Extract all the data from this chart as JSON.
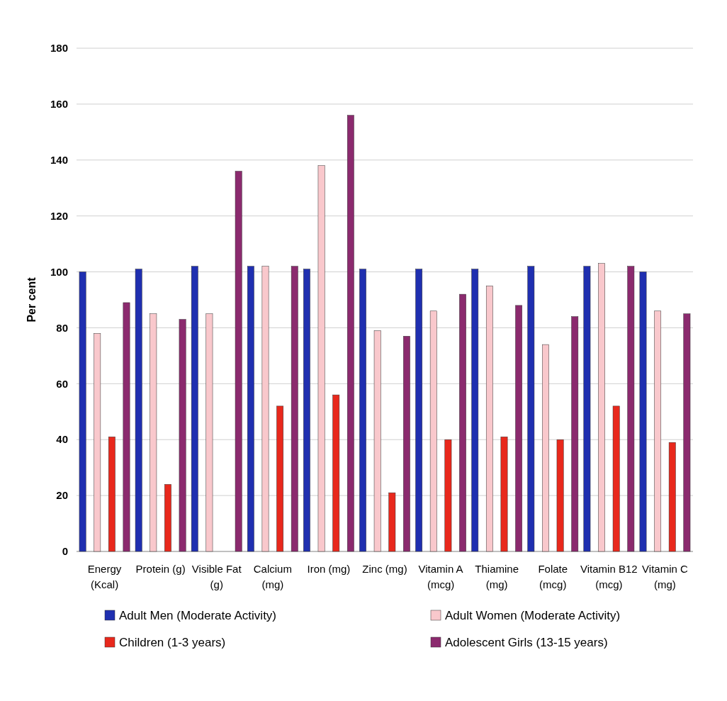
{
  "chart_data": {
    "type": "bar",
    "ylabel": "Per cent",
    "categories": [
      "Energy (Kcal)",
      "Protein (g)",
      "Visible Fat (g)",
      "Calcium (mg)",
      "Iron (mg)",
      "Zinc (mg)",
      "Vitamin A (mcg)",
      "Thiamine (mg)",
      "Folate (mcg)",
      "Vitamin B12 (mcg)",
      "Vitamin C (mg)"
    ],
    "series": [
      {
        "name": "Adult Men (Moderate Activity)",
        "color": "#1f2fb0",
        "values": [
          100,
          101,
          102,
          102,
          101,
          101,
          101,
          101,
          102,
          102,
          100
        ]
      },
      {
        "name": "Adult Women (Moderate Activity)",
        "color": "#f9c8cc",
        "values": [
          78,
          85,
          85,
          102,
          138,
          79,
          86,
          95,
          74,
          103,
          86
        ]
      },
      {
        "name": "Children (1-3 years)",
        "color": "#e8281c",
        "values": [
          41,
          24,
          null,
          52,
          56,
          21,
          40,
          41,
          40,
          52,
          39
        ]
      },
      {
        "name": "Adolescent Girls (13-15 years)",
        "color": "#8b2a6e",
        "values": [
          89,
          83,
          136,
          102,
          156,
          77,
          92,
          88,
          84,
          102,
          85
        ]
      }
    ],
    "ylim": [
      0,
      180
    ],
    "yticks": [
      0,
      20,
      40,
      60,
      80,
      100,
      120,
      140,
      160,
      180
    ],
    "grid": "y",
    "legend": "bottom"
  }
}
